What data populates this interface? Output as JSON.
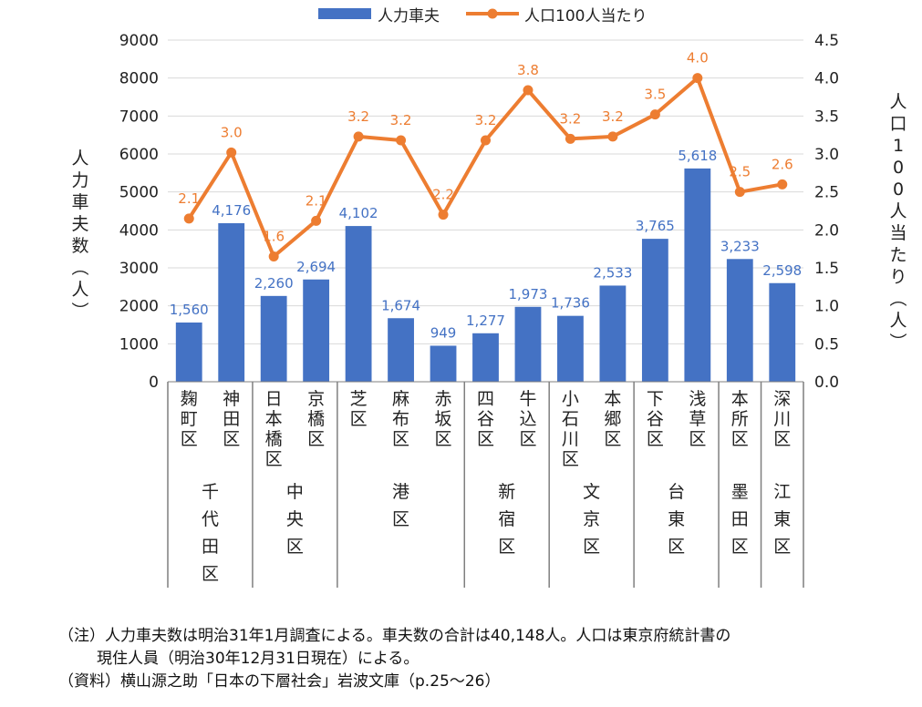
{
  "chart_data": {
    "type": "bar",
    "legend": {
      "position": "top",
      "bar_label": "人力車夫",
      "line_label": "人口100人当たり"
    },
    "y_left": {
      "label": "人力車夫数（人）",
      "min": 0,
      "max": 9000,
      "ticks": [
        "0",
        "1000",
        "2000",
        "3000",
        "4000",
        "5000",
        "6000",
        "7000",
        "8000",
        "9000"
      ]
    },
    "y_right": {
      "label": "人口100人当たり（人）",
      "min": 0,
      "max": 4.5,
      "ticks": [
        "0.0",
        "0.5",
        "1.0",
        "1.5",
        "2.0",
        "2.5",
        "3.0",
        "3.5",
        "4.0",
        "4.5"
      ]
    },
    "categories": [
      "麹町区",
      "神田区",
      "日本橋区",
      "京橋区",
      "芝区",
      "麻布区",
      "赤坂区",
      "四谷区",
      "牛込区",
      "小石川区",
      "本郷区",
      "下谷区",
      "浅草区",
      "本所区",
      "深川区"
    ],
    "series": [
      {
        "name": "人力車夫",
        "type": "bar",
        "color": "#4472C4",
        "values": [
          1560,
          4176,
          2260,
          2694,
          4102,
          1674,
          949,
          1277,
          1973,
          1736,
          2533,
          3765,
          5618,
          3233,
          2598
        ],
        "labels": [
          "1,560",
          "4,176",
          "2,260",
          "2,694",
          "4,102",
          "1,674",
          "949",
          "1,277",
          "1,973",
          "1,736",
          "2,533",
          "3,765",
          "5,618",
          "3,233",
          "2,598"
        ]
      },
      {
        "name": "人口100人当たり",
        "type": "line",
        "color": "#ED7D31",
        "values": [
          2.15,
          3.02,
          1.65,
          2.12,
          3.23,
          3.18,
          2.2,
          3.18,
          3.84,
          3.2,
          3.23,
          3.52,
          4.0,
          2.5,
          2.6
        ],
        "labels": [
          "2.1",
          "3.0",
          "1.6",
          "2.1",
          "3.2",
          "3.2",
          "2.2",
          "3.2",
          "3.8",
          "3.2",
          "3.2",
          "3.5",
          "4.0",
          "2.5",
          "2.6"
        ]
      }
    ],
    "groups": [
      {
        "label": "千代田区",
        "span": 2
      },
      {
        "label": "中央区",
        "span": 2
      },
      {
        "label": "港区",
        "span": 3
      },
      {
        "label": "新宿区",
        "span": 2
      },
      {
        "label": "文京区",
        "span": 2
      },
      {
        "label": "台東区",
        "span": 2
      },
      {
        "label": "墨田区",
        "span": 1
      },
      {
        "label": "江東区",
        "span": 1
      }
    ],
    "grid": true
  },
  "notes": {
    "line1": "（注）人力車夫数は明治31年1月調査による。車夫数の合計は40,148人。人口は東京府統計書の",
    "line2": "現住人員（明治30年12月31日現在）による。",
    "line3": "（資料）横山源之助「日本の下層社会」岩波文庫（p.25～26）"
  }
}
